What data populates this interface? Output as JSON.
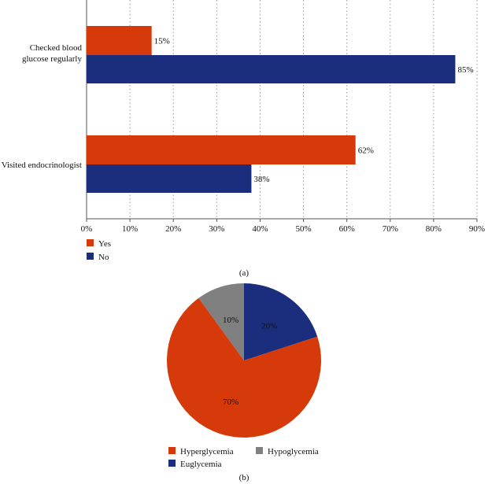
{
  "colors": {
    "yes": "#d63a0b",
    "no": "#1b2e7e",
    "gray": "#808080"
  },
  "chart_data": [
    {
      "type": "bar",
      "orientation": "horizontal",
      "categories": [
        "Checked blood glucose regularly",
        "Visited endocrinologist"
      ],
      "category_label_lines": [
        [
          "Checked blood",
          "glucose regularly"
        ],
        [
          "Visited endocrinologist"
        ]
      ],
      "series": [
        {
          "name": "Yes",
          "values": [
            15,
            62
          ],
          "labels": [
            "15%",
            "62%"
          ]
        },
        {
          "name": "No",
          "values": [
            85,
            38
          ],
          "labels": [
            "85%",
            "38%"
          ]
        }
      ],
      "xlim": [
        0,
        90
      ],
      "ticks": [
        "0%",
        "10%",
        "20%",
        "30%",
        "40%",
        "50%",
        "60%",
        "70%",
        "80%",
        "90%"
      ],
      "legend": [
        "Yes",
        "No"
      ],
      "legend_position": "bottom-left",
      "caption": "(a)"
    },
    {
      "type": "pie",
      "slices": [
        {
          "name": "Euglycemia",
          "value": 20,
          "label": "20%"
        },
        {
          "name": "Hyperglycemia",
          "value": 70,
          "label": "70%"
        },
        {
          "name": "Hypoglycemia",
          "value": 10,
          "label": "10%"
        }
      ],
      "legend": [
        "Hyperglycemia",
        "Hypoglycemia",
        "Euglycemia"
      ],
      "legend_position": "bottom",
      "caption": "(b)"
    }
  ]
}
